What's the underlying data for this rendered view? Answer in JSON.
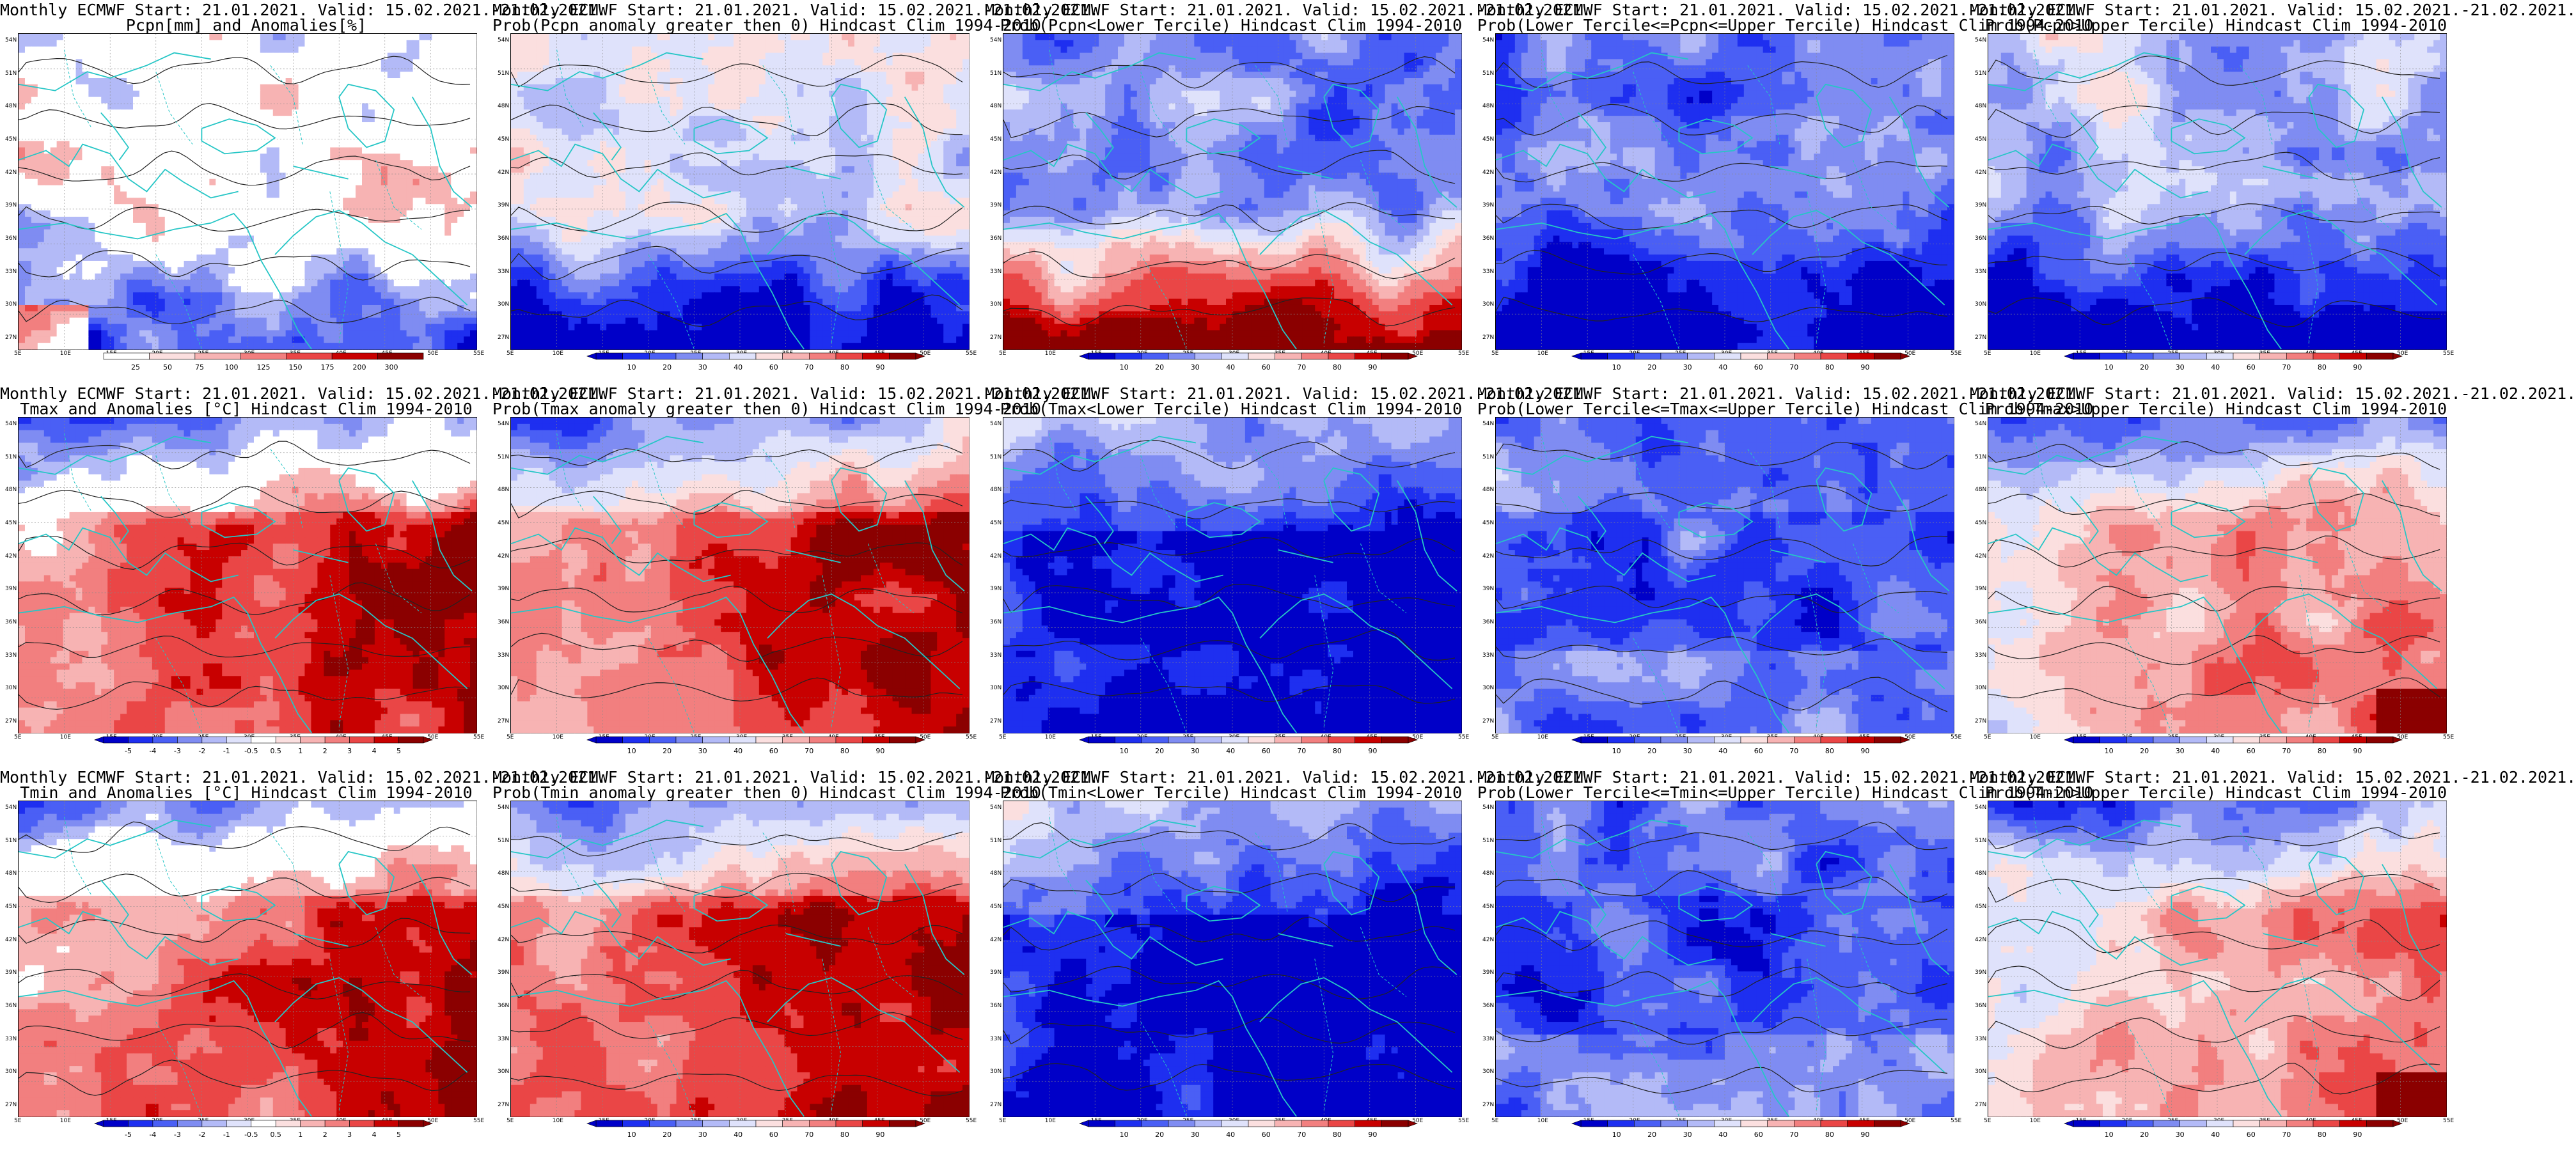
{
  "colors": {
    "coast": "#26c6c6",
    "contour": "#222222",
    "scale_anomaly": [
      "#0000c8",
      "#1e2ff0",
      "#4a5ff5",
      "#7f8cf2",
      "#b3baf7",
      "#dfe2fb",
      "#ffffff",
      "#fbdfdf",
      "#f7b3b3",
      "#f27f7f",
      "#ea4646",
      "#c80000",
      "#8b0000"
    ],
    "scale_prob": [
      "#0000c8",
      "#1e2ff0",
      "#4a5ff5",
      "#7f8cf2",
      "#b3baf7",
      "#dfe2fb",
      "#fbdfdf",
      "#f7b3b3",
      "#f27f7f",
      "#ea4646",
      "#c80000",
      "#8b0000"
    ]
  },
  "map": {
    "lat_labels": [
      "54N",
      "51N",
      "48N",
      "45N",
      "42N",
      "39N",
      "36N",
      "33N",
      "30N",
      "27N"
    ],
    "lon_labels": [
      "5E",
      "10E",
      "15E",
      "20E",
      "25E",
      "30E",
      "35E",
      "40E",
      "45E",
      "50E",
      "55E"
    ]
  },
  "rows": [
    {
      "variable": "pcpn",
      "panels": [
        {
          "title1": "Monthly ECMWF Start: 21.01.2021. Valid: 15.02.2021.-21.02.2021.",
          "title2": "Pcpn[mm] and Anomalies[%]",
          "scale": "pcpn_anom",
          "colorbar": [
            "25",
            "50",
            "75",
            "100",
            "125",
            "150",
            "175",
            "200",
            "300"
          ],
          "wedge": "none"
        },
        {
          "title1": "Monthly ECMWF Start: 21.01.2021. Valid: 15.02.2021.-21.02.2021.",
          "title2": "Prob(Pcpn anomaly greater then 0) Hindcast Clim 1994-2010",
          "scale": "prob",
          "colorbar": [
            "10",
            "20",
            "30",
            "40",
            "60",
            "70",
            "80",
            "90"
          ],
          "wedge": "both"
        },
        {
          "title1": "Monthly ECMWF Start: 21.01.2021. Valid: 15.02.2021.-21.02.2021.",
          "title2": "Prob(Pcpn<Lower Tercile) Hindcast Clim 1994-2010",
          "scale": "prob",
          "colorbar": [
            "10",
            "20",
            "30",
            "40",
            "60",
            "70",
            "80",
            "90"
          ],
          "wedge": "both"
        },
        {
          "title1": "Monthly ECMWF Start: 21.01.2021. Valid: 15.02.2021.-21.02.2021.",
          "title2": "Prob(Lower Tercile<=Pcpn<=Upper Tercile) Hindcast Clim 1994-2010",
          "scale": "prob",
          "colorbar": [
            "10",
            "20",
            "30",
            "40",
            "60",
            "70",
            "80",
            "90"
          ],
          "wedge": "both"
        },
        {
          "title1": "Monthly ECMWF Start: 21.01.2021. Valid: 15.02.2021.-21.02.2021.",
          "title2": "Prob(Pcpn>Upper Tercile) Hindcast Clim 1994-2010",
          "scale": "prob",
          "colorbar": [
            "10",
            "20",
            "30",
            "40",
            "60",
            "70",
            "80",
            "90"
          ],
          "wedge": "both"
        }
      ]
    },
    {
      "variable": "tmax",
      "panels": [
        {
          "title1": "Monthly ECMWF Start: 21.01.2021. Valid: 15.02.2021.-21.02.2021.",
          "title2": "Tmax and Anomalies [°C] Hindcast Clim 1994-2010",
          "scale": "temp_anom",
          "colorbar": [
            "-5",
            "-4",
            "-3",
            "-2",
            "-1",
            "-0.5",
            "0.5",
            "1",
            "2",
            "3",
            "4",
            "5"
          ],
          "wedge": "both"
        },
        {
          "title1": "Monthly ECMWF Start: 21.01.2021. Valid: 15.02.2021.-21.02.2021.",
          "title2": "Prob(Tmax anomaly greater then 0) Hindcast Clim 1994-2010",
          "scale": "prob",
          "colorbar": [
            "10",
            "20",
            "30",
            "40",
            "60",
            "70",
            "80",
            "90"
          ],
          "wedge": "both"
        },
        {
          "title1": "Monthly ECMWF Start: 21.01.2021. Valid: 15.02.2021.-21.02.2021.",
          "title2": "Prob(Tmax<Lower Tercile) Hindcast Clim 1994-2010",
          "scale": "prob",
          "colorbar": [
            "10",
            "20",
            "30",
            "40",
            "60",
            "70",
            "80",
            "90"
          ],
          "wedge": "both"
        },
        {
          "title1": "Monthly ECMWF Start: 21.01.2021. Valid: 15.02.2021.-21.02.2021.",
          "title2": "Prob(Lower Tercile<=Tmax<=Upper Tercile) Hindcast Clim 1994-2010",
          "scale": "prob",
          "colorbar": [
            "10",
            "20",
            "30",
            "40",
            "60",
            "70",
            "80",
            "90"
          ],
          "wedge": "both"
        },
        {
          "title1": "Monthly ECMWF Start: 21.01.2021. Valid: 15.02.2021.-21.02.2021.",
          "title2": "Prob(Tmax>Upper Tercile) Hindcast Clim 1994-2010",
          "scale": "prob",
          "colorbar": [
            "10",
            "20",
            "30",
            "40",
            "60",
            "70",
            "80",
            "90"
          ],
          "wedge": "both"
        }
      ]
    },
    {
      "variable": "tmin",
      "panels": [
        {
          "title1": "Monthly ECMWF Start: 21.01.2021. Valid: 15.02.2021.-21.02.2021.",
          "title2": "Tmin and Anomalies [°C] Hindcast Clim 1994-2010",
          "scale": "temp_anom",
          "colorbar": [
            "-5",
            "-4",
            "-3",
            "-2",
            "-1",
            "-0.5",
            "0.5",
            "1",
            "2",
            "3",
            "4",
            "5"
          ],
          "wedge": "both"
        },
        {
          "title1": "Monthly ECMWF Start: 21.01.2021. Valid: 15.02.2021.-21.02.2021.",
          "title2": "Prob(Tmin anomaly greater then 0) Hindcast Clim 1994-2010",
          "scale": "prob",
          "colorbar": [
            "10",
            "20",
            "30",
            "40",
            "60",
            "70",
            "80",
            "90"
          ],
          "wedge": "both"
        },
        {
          "title1": "Monthly ECMWF Start: 21.01.2021. Valid: 15.02.2021.-21.02.2021.",
          "title2": "Prob(Tmin<Lower Tercile) Hindcast Clim 1994-2010",
          "scale": "prob",
          "colorbar": [
            "10",
            "20",
            "30",
            "40",
            "60",
            "70",
            "80",
            "90"
          ],
          "wedge": "both"
        },
        {
          "title1": "Monthly ECMWF Start: 21.01.2021. Valid: 15.02.2021.-21.02.2021.",
          "title2": "Prob(Lower Tercile<=Tmin<=Upper Tercile) Hindcast Clim 1994-2010",
          "scale": "prob",
          "colorbar": [
            "10",
            "20",
            "30",
            "40",
            "60",
            "70",
            "80",
            "90"
          ],
          "wedge": "both"
        },
        {
          "title1": "Monthly ECMWF Start: 21.01.2021. Valid: 15.02.2021.-21.02.2021.",
          "title2": "Prob(Tmin>Upper Tercile) Hindcast Clim 1994-2010",
          "scale": "prob",
          "colorbar": [
            "10",
            "20",
            "30",
            "40",
            "60",
            "70",
            "80",
            "90"
          ],
          "wedge": "both"
        }
      ]
    }
  ]
}
